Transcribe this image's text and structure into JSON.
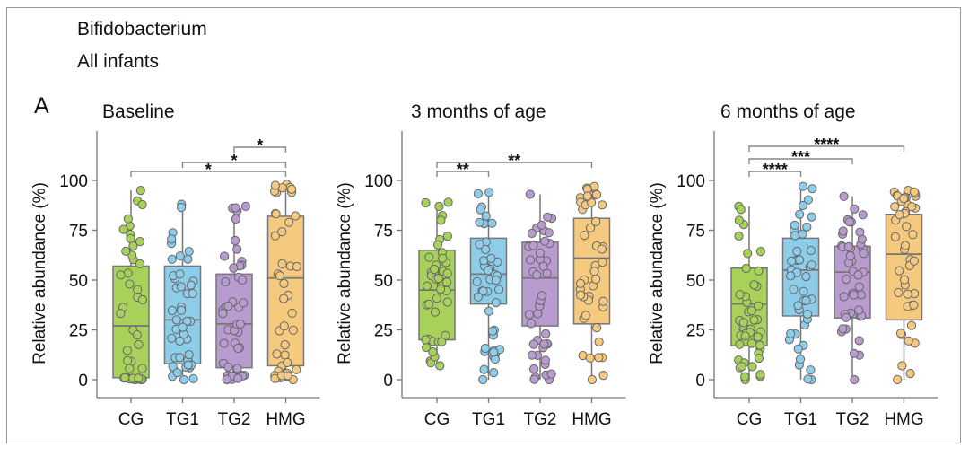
{
  "figure": {
    "title": "Bifidobacterium",
    "subtitle": "All infants",
    "panel_label": "A"
  },
  "colors": {
    "CG": "#a8d15a",
    "TG1": "#8ecdea",
    "TG2": "#b89bcf",
    "HMG": "#f5c97e",
    "point_stroke": "#666666",
    "axis": "#777777"
  },
  "chart_data": [
    {
      "type": "boxplot",
      "title": "Baseline",
      "xlabel": "",
      "ylabel": "Relative abundance (%)",
      "ylim": [
        0,
        100
      ],
      "yticks": [
        0,
        25,
        50,
        75,
        100
      ],
      "categories": [
        "CG",
        "TG1",
        "TG2",
        "HMG"
      ],
      "boxes": [
        {
          "group": "CG",
          "q1": 1,
          "median": 27,
          "q3": 57,
          "whisker_low": 0,
          "whisker_high": 95
        },
        {
          "group": "TG1",
          "q1": 8,
          "median": 30,
          "q3": 57,
          "whisker_low": 0,
          "whisker_high": 88
        },
        {
          "group": "TG2",
          "q1": 6,
          "median": 28,
          "q3": 53,
          "whisker_low": 0,
          "whisker_high": 87
        },
        {
          "group": "HMG",
          "q1": 7,
          "median": 51,
          "q3": 82,
          "whisker_low": 0,
          "whisker_high": 98
        }
      ],
      "comparisons": [
        {
          "from": "TG2",
          "to": "HMG",
          "label": "*"
        },
        {
          "from": "TG1",
          "to": "HMG",
          "label": "*"
        },
        {
          "from": "CG",
          "to": "HMG",
          "label": "*"
        }
      ]
    },
    {
      "type": "boxplot",
      "title": "3 months of age",
      "xlabel": "",
      "ylabel": "Relative abundance (%)",
      "ylim": [
        0,
        100
      ],
      "yticks": [
        0,
        25,
        50,
        75,
        100
      ],
      "categories": [
        "CG",
        "TG1",
        "TG2",
        "HMG"
      ],
      "boxes": [
        {
          "group": "CG",
          "q1": 20,
          "median": 45,
          "q3": 65,
          "whisker_low": 7,
          "whisker_high": 89
        },
        {
          "group": "TG1",
          "q1": 38,
          "median": 53,
          "q3": 71,
          "whisker_low": 0,
          "whisker_high": 94
        },
        {
          "group": "TG2",
          "q1": 27,
          "median": 51,
          "q3": 69,
          "whisker_low": 0,
          "whisker_high": 93
        },
        {
          "group": "HMG",
          "q1": 28,
          "median": 61,
          "q3": 81,
          "whisker_low": 0,
          "whisker_high": 97
        }
      ],
      "comparisons": [
        {
          "from": "CG",
          "to": "TG1",
          "label": "**"
        },
        {
          "from": "CG",
          "to": "HMG",
          "label": "**"
        }
      ]
    },
    {
      "type": "boxplot",
      "title": "6 months of age",
      "xlabel": "",
      "ylabel": "Relative abundance (%)",
      "ylim": [
        0,
        100
      ],
      "yticks": [
        0,
        25,
        50,
        75,
        100
      ],
      "categories": [
        "CG",
        "TG1",
        "TG2",
        "HMG"
      ],
      "boxes": [
        {
          "group": "CG",
          "q1": 17,
          "median": 38,
          "q3": 56,
          "whisker_low": 0,
          "whisker_high": 87
        },
        {
          "group": "TG1",
          "q1": 32,
          "median": 55,
          "q3": 71,
          "whisker_low": 0,
          "whisker_high": 97
        },
        {
          "group": "TG2",
          "q1": 31,
          "median": 54,
          "q3": 67,
          "whisker_low": 0,
          "whisker_high": 92
        },
        {
          "group": "HMG",
          "q1": 30,
          "median": 63,
          "q3": 83,
          "whisker_low": 0,
          "whisker_high": 95
        }
      ],
      "comparisons": [
        {
          "from": "CG",
          "to": "TG1",
          "label": "****"
        },
        {
          "from": "CG",
          "to": "TG2",
          "label": "***"
        },
        {
          "from": "CG",
          "to": "HMG",
          "label": "****"
        }
      ]
    }
  ]
}
